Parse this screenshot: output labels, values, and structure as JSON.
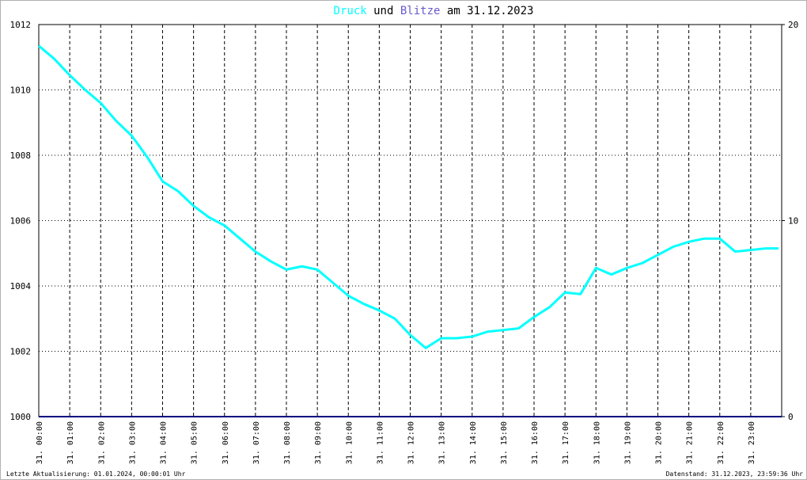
{
  "chart_data": {
    "type": "line",
    "title_join": "und",
    "title_suffix": "am 31.12.2023",
    "footer_left": "Letzte Aktualisierung: 01.01.2024, 00:00:01 Uhr",
    "footer_right": "Datenstand: 31.12.2023, 23:59:36 Uhr",
    "xlim": [
      0,
      24
    ],
    "xticks": [
      {
        "value": 0,
        "label": "31. 00:00"
      },
      {
        "value": 1,
        "label": "31. 01:00"
      },
      {
        "value": 2,
        "label": "31. 02:00"
      },
      {
        "value": 3,
        "label": "31. 03:00"
      },
      {
        "value": 4,
        "label": "31. 04:00"
      },
      {
        "value": 5,
        "label": "31. 05:00"
      },
      {
        "value": 6,
        "label": "31. 06:00"
      },
      {
        "value": 7,
        "label": "31. 07:00"
      },
      {
        "value": 8,
        "label": "31. 08:00"
      },
      {
        "value": 9,
        "label": "31. 09:00"
      },
      {
        "value": 10,
        "label": "31. 10:00"
      },
      {
        "value": 11,
        "label": "31. 11:00"
      },
      {
        "value": 12,
        "label": "31. 12:00"
      },
      {
        "value": 13,
        "label": "31. 13:00"
      },
      {
        "value": 14,
        "label": "31. 14:00"
      },
      {
        "value": 15,
        "label": "31. 15:00"
      },
      {
        "value": 16,
        "label": "31. 16:00"
      },
      {
        "value": 17,
        "label": "31. 17:00"
      },
      {
        "value": 18,
        "label": "31. 18:00"
      },
      {
        "value": 19,
        "label": "31. 19:00"
      },
      {
        "value": 20,
        "label": "31. 20:00"
      },
      {
        "value": 21,
        "label": "31. 21:00"
      },
      {
        "value": 22,
        "label": "31. 22:00"
      },
      {
        "value": 23,
        "label": "31. 23:00"
      }
    ],
    "ylim": [
      1000,
      1012
    ],
    "yticks": [
      1000,
      1002,
      1004,
      1006,
      1008,
      1010,
      1012
    ],
    "y2lim": [
      0,
      20
    ],
    "y2ticks": [
      0,
      10,
      20
    ],
    "grid": true,
    "series": [
      {
        "name": "Druck",
        "color": "#00ffff",
        "x": [
          0,
          0.5,
          1,
          1.5,
          2,
          2.5,
          3,
          3.5,
          4,
          4.5,
          5,
          5.5,
          6,
          6.5,
          7,
          7.5,
          8,
          8.5,
          9,
          9.5,
          10,
          10.5,
          11,
          11.5,
          12,
          12.5,
          13,
          13.5,
          14,
          14.5,
          15,
          15.5,
          16,
          16.5,
          17,
          17.5,
          18,
          18.5,
          19,
          19.5,
          20,
          20.5,
          21,
          21.5,
          22,
          22.5,
          23,
          23.5,
          23.9
        ],
        "values": [
          1011.35,
          1010.95,
          1010.45,
          1010.0,
          1009.6,
          1009.05,
          1008.6,
          1007.95,
          1007.2,
          1006.9,
          1006.45,
          1006.1,
          1005.85,
          1005.45,
          1005.05,
          1004.75,
          1004.5,
          1004.6,
          1004.5,
          1004.1,
          1003.7,
          1003.45,
          1003.25,
          1003.0,
          1002.5,
          1002.1,
          1002.4,
          1002.4,
          1002.45,
          1002.6,
          1002.65,
          1002.7,
          1003.05,
          1003.35,
          1003.8,
          1003.75,
          1004.55,
          1004.35,
          1004.55,
          1004.7,
          1004.95,
          1005.2,
          1005.35,
          1005.45,
          1005.45,
          1005.05,
          1005.1,
          1005.15,
          1005.15
        ]
      },
      {
        "name": "Blitze",
        "color": "#6a5acd",
        "line_color": "#000080",
        "axis": "y2",
        "x": [
          0,
          24
        ],
        "values": [
          0,
          0
        ]
      }
    ]
  }
}
